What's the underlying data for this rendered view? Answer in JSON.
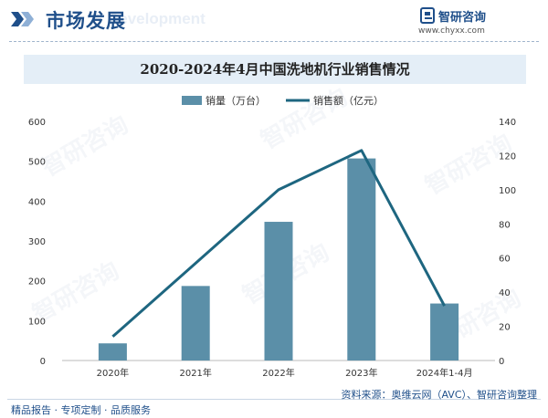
{
  "header": {
    "title": "市场发展",
    "bg_text": "Development"
  },
  "logo": {
    "name": "智研咨询",
    "url": "www.chyxx.com"
  },
  "watermark": "智研咨询",
  "colors": {
    "bar": "#5b8fa8",
    "line": "#1e6680",
    "brand": "#1f4f8a",
    "title_band": "#e4eef7"
  },
  "footer": {
    "left": "精品报告 · 专项定制 · 品质服务",
    "right": "资料来源：奥维云网（AVC）、智研咨询整理"
  },
  "chart_data": {
    "type": "bar+line",
    "title": "2020-2024年4月中国洗地机行业销售情况",
    "categories": [
      "2020年",
      "2021年",
      "2022年",
      "2023年",
      "2024年1-4月"
    ],
    "series": [
      {
        "name": "销量（万台）",
        "type": "bar",
        "axis": "left",
        "values": [
          43,
          187,
          348,
          507,
          143
        ]
      },
      {
        "name": "销售额（亿元）",
        "type": "line",
        "axis": "right",
        "values": [
          14,
          57,
          100,
          123,
          32
        ]
      }
    ],
    "left_axis": {
      "ylim": [
        0,
        600
      ],
      "ticks": [
        0,
        100,
        200,
        300,
        400,
        500,
        600
      ]
    },
    "right_axis": {
      "ylim": [
        0,
        140
      ],
      "ticks": [
        0,
        20,
        40,
        60,
        80,
        100,
        120,
        140
      ]
    },
    "legend_position": "top-center",
    "grid": false
  }
}
